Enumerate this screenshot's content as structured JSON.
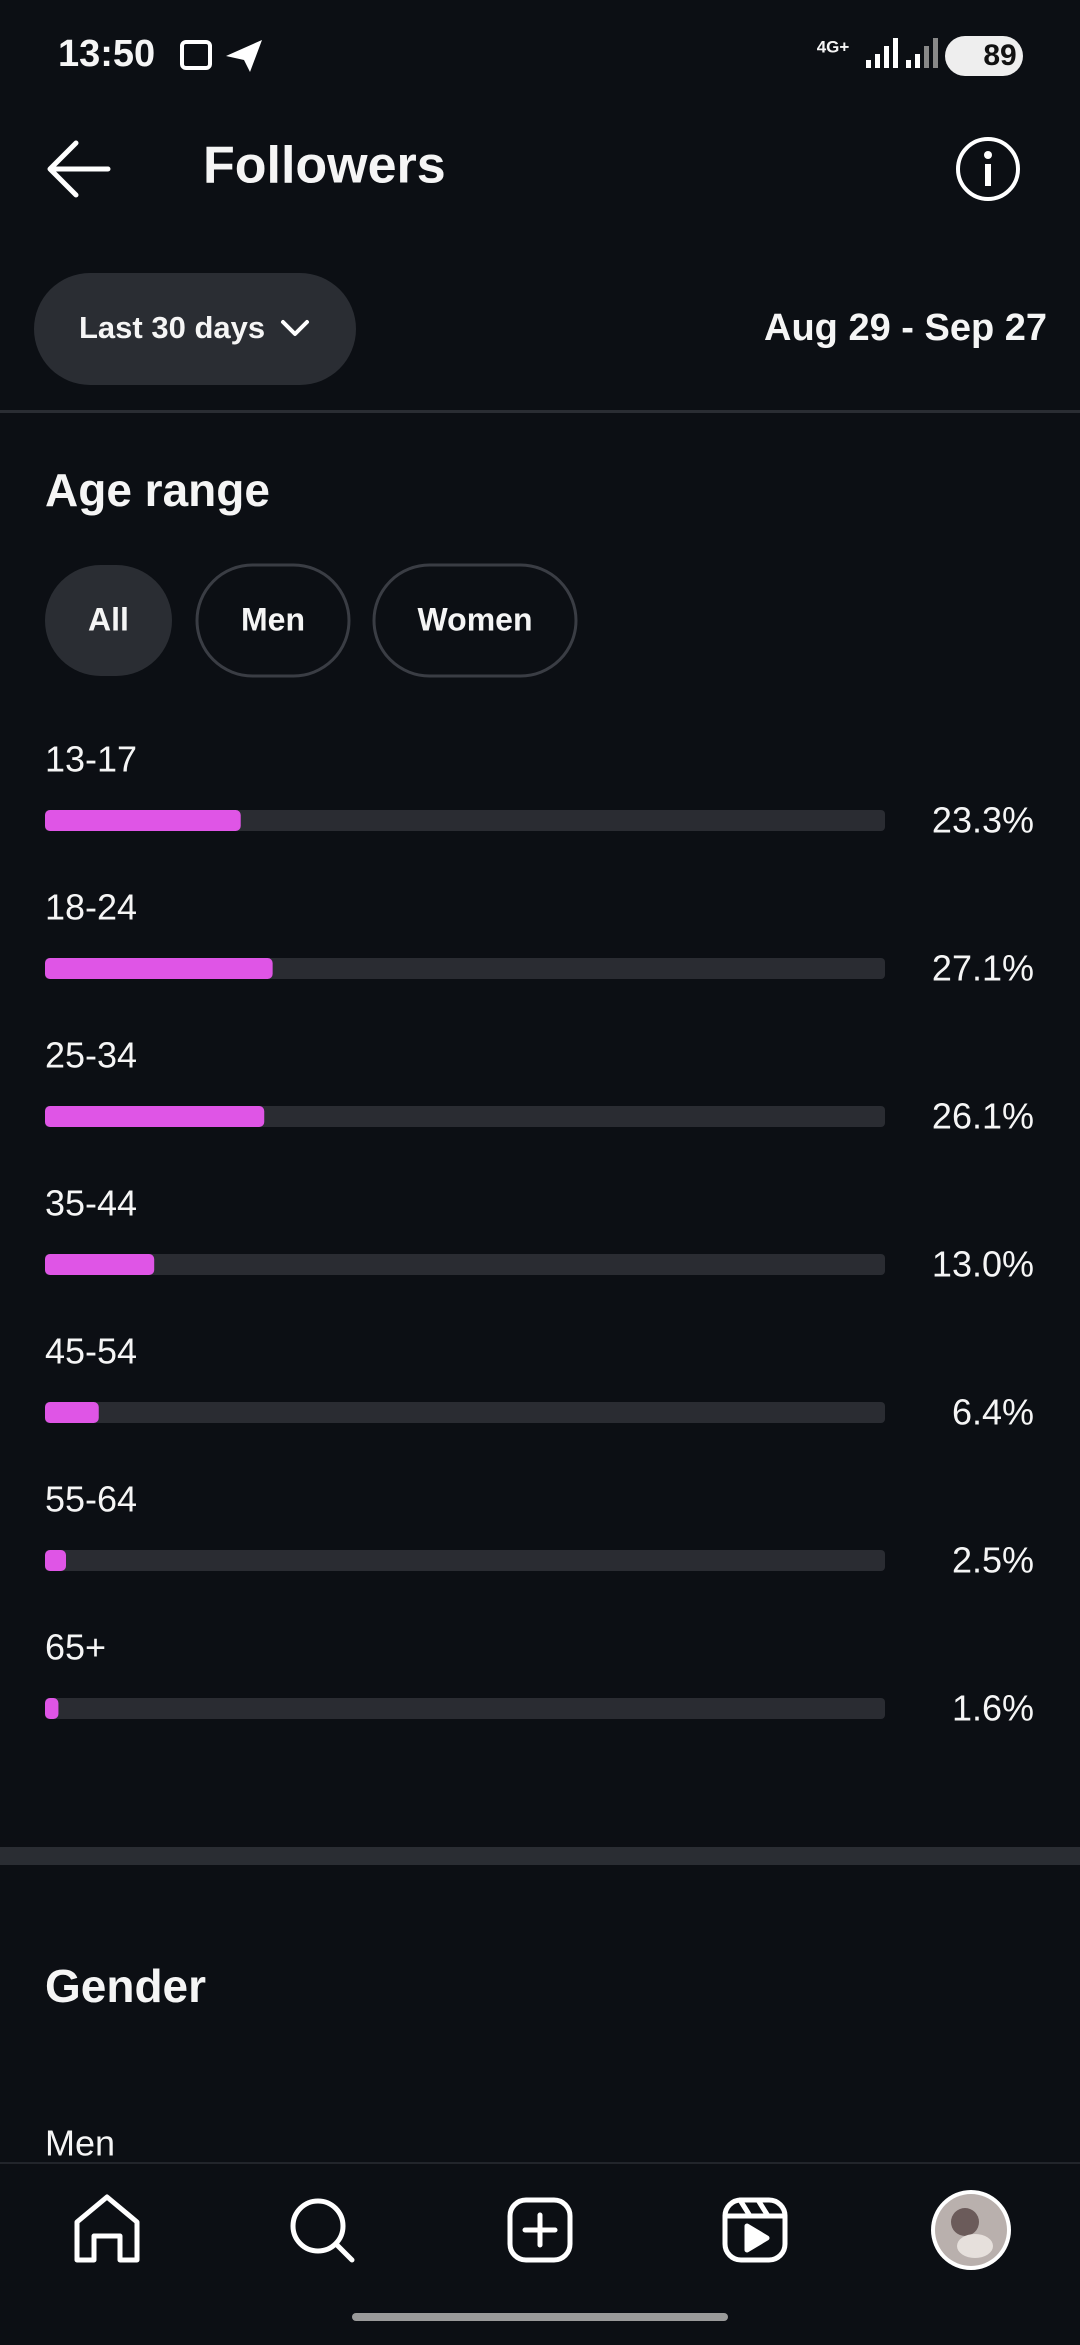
{
  "status_bar": {
    "time": "13:50",
    "network": "4G+",
    "battery": "89"
  },
  "header": {
    "title": "Followers"
  },
  "filter": {
    "period": "Last 30 days",
    "date_range": "Aug 29 - Sep 27"
  },
  "age_range": {
    "title": "Age range",
    "tabs": [
      "All",
      "Men",
      "Women"
    ],
    "chart_data": {
      "type": "bar",
      "orientation": "horizontal",
      "categories": [
        "13-17",
        "18-24",
        "25-34",
        "35-44",
        "45-54",
        "55-64",
        "65+"
      ],
      "values": [
        23.3,
        27.1,
        26.1,
        13.0,
        6.4,
        2.5,
        1.6
      ],
      "value_labels": [
        "23.3%",
        "27.1%",
        "26.1%",
        "13.0%",
        "6.4%",
        "2.5%",
        "1.6%"
      ],
      "xlim": [
        0,
        100
      ],
      "color": "#df55e6",
      "track_color": "#2a2c32"
    }
  },
  "gender": {
    "title": "Gender",
    "first_label": "Men"
  }
}
